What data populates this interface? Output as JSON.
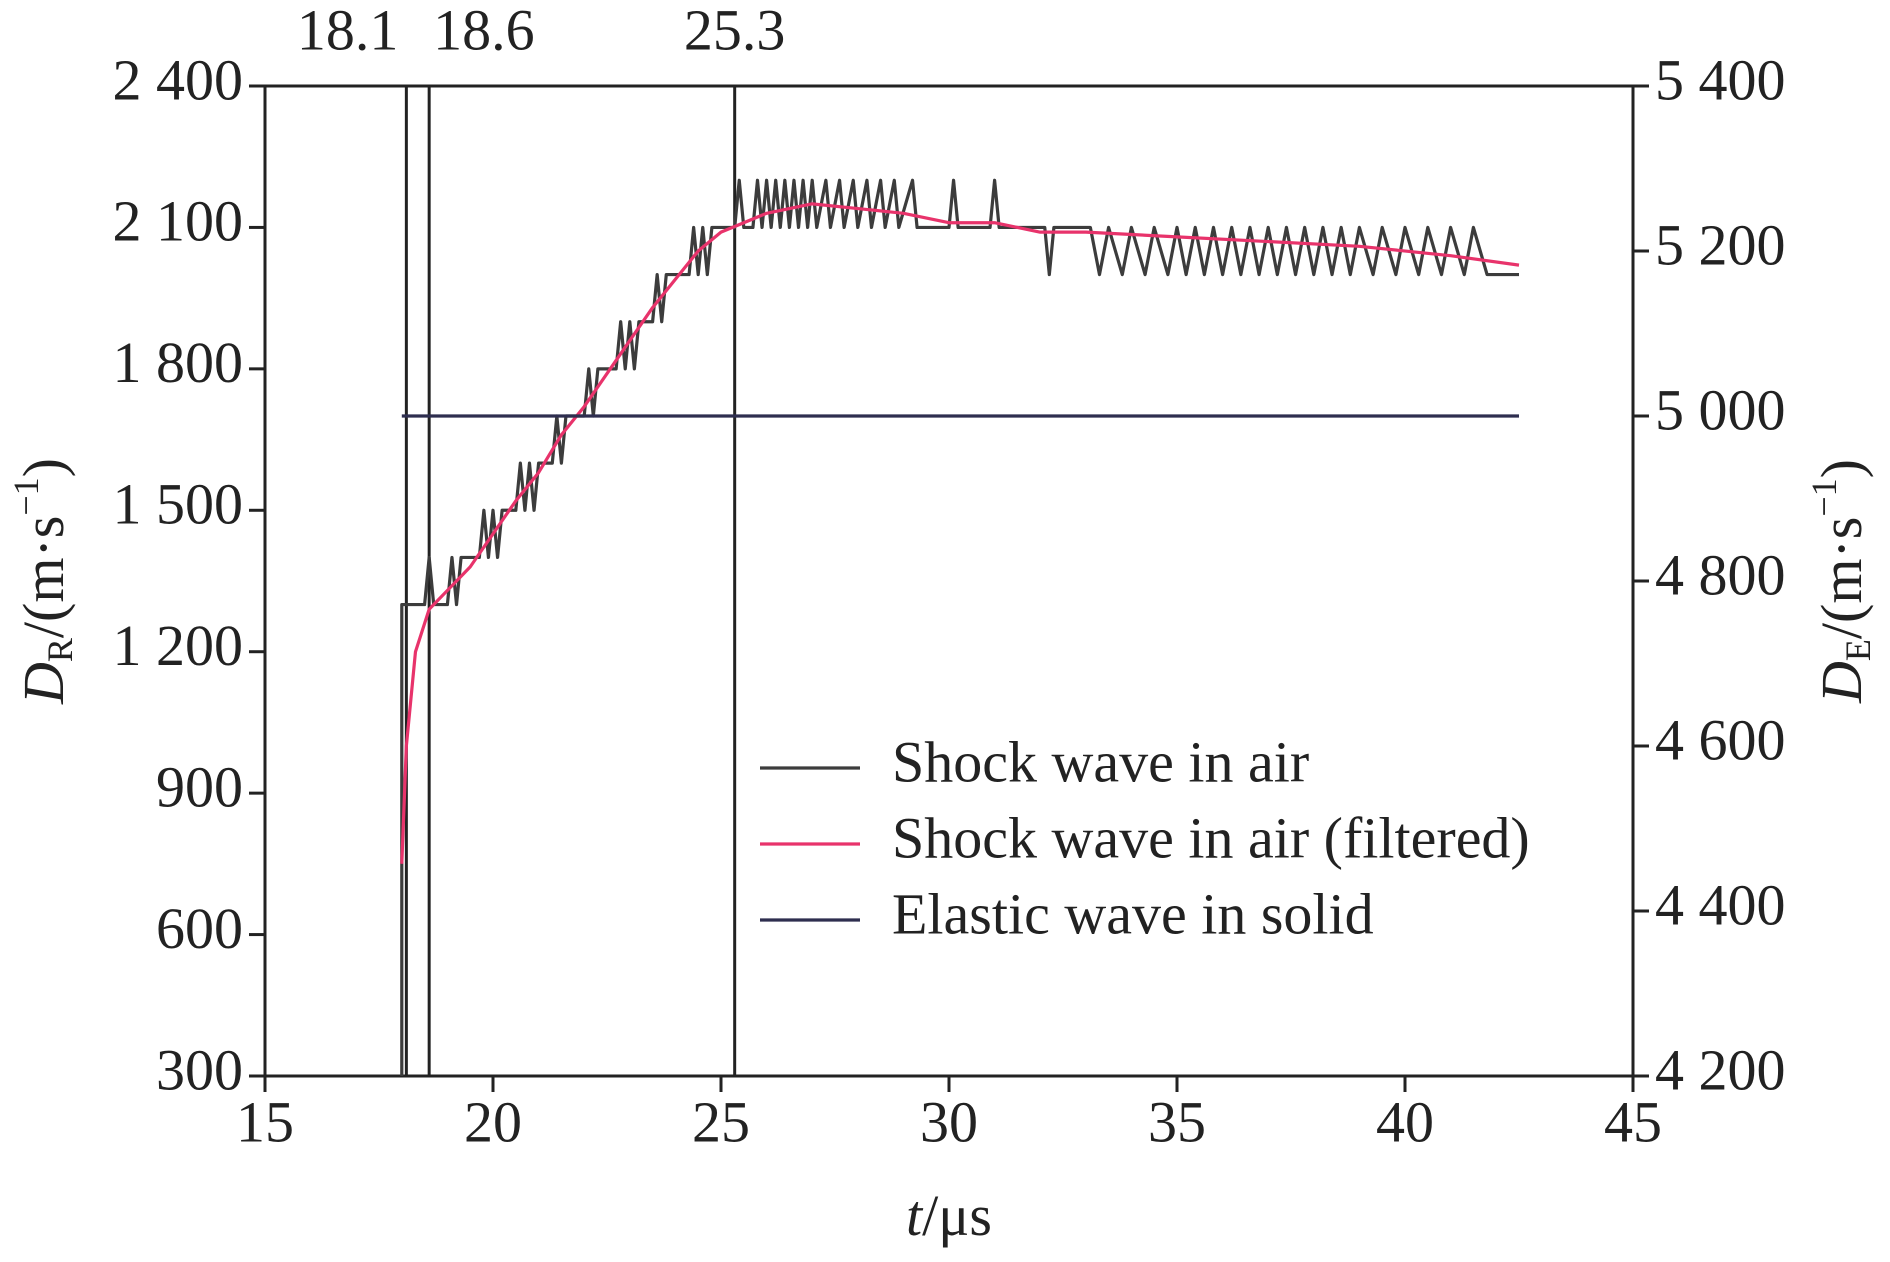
{
  "chart_data": {
    "type": "line",
    "xlabel": [
      "t",
      "/μs"
    ],
    "ylabel": [
      "D",
      "R",
      "/(m·s",
      "−1",
      ")"
    ],
    "y2label": [
      "D",
      "E",
      "/(m·s",
      "−1",
      ")"
    ],
    "xlim": [
      15,
      45
    ],
    "xticks": [
      15,
      20,
      25,
      30,
      35,
      40,
      45
    ],
    "ylim": [
      300,
      2400
    ],
    "yticks": [
      300,
      600,
      900,
      {
        "value": 1200,
        "label": "1 200"
      },
      {
        "value": 1500,
        "label": "1 500"
      },
      {
        "value": 1800,
        "label": "1 800"
      },
      {
        "value": 2100,
        "label": "2 100"
      },
      {
        "value": 2400,
        "label": "2 400"
      }
    ],
    "y2lim": [
      4200,
      5400
    ],
    "y2ticks": [
      {
        "value": 4200,
        "label": "4 200"
      },
      {
        "value": 4400,
        "label": "4 400"
      },
      {
        "value": 4600,
        "label": "4 600"
      },
      {
        "value": 4800,
        "label": "4 800"
      },
      {
        "value": 5000,
        "label": "5 000"
      },
      {
        "value": 5200,
        "label": "5 200"
      },
      {
        "value": 5400,
        "label": "5 400"
      }
    ],
    "vlines": [
      18.1,
      18.6,
      25.3
    ],
    "legend": "lower right",
    "series": [
      {
        "name": "Shock wave in air",
        "color": "#3c3c3c",
        "x": [
          18.0,
          18.0,
          18.5,
          18.6,
          18.7,
          19.0,
          19.1,
          19.2,
          19.3,
          19.7,
          19.8,
          19.9,
          20.0,
          20.1,
          20.2,
          20.5,
          20.6,
          20.7,
          20.8,
          20.9,
          21.0,
          21.3,
          21.4,
          21.5,
          21.6,
          22.0,
          22.1,
          22.2,
          22.3,
          22.7,
          22.8,
          22.9,
          23.0,
          23.1,
          23.2,
          23.5,
          23.6,
          23.7,
          23.8,
          24.3,
          24.4,
          24.5,
          24.6,
          24.7,
          24.8,
          25.3,
          25.4,
          25.5,
          25.7,
          25.8,
          25.9,
          26.0,
          26.1,
          26.2,
          26.3,
          26.4,
          26.5,
          26.6,
          26.7,
          26.8,
          26.9,
          27.0,
          27.1,
          27.3,
          27.4,
          27.6,
          27.7,
          27.9,
          28.0,
          28.2,
          28.3,
          28.5,
          28.6,
          28.8,
          28.9,
          29.2,
          29.3,
          30.0,
          30.1,
          30.2,
          30.9,
          31.0,
          31.1,
          32.1,
          32.2,
          32.3,
          33.1,
          33.3,
          33.5,
          33.8,
          34.0,
          34.3,
          34.5,
          34.8,
          35.0,
          35.2,
          35.4,
          35.6,
          35.8,
          36.0,
          36.2,
          36.4,
          36.6,
          36.8,
          37.0,
          37.2,
          37.4,
          37.6,
          37.8,
          38.0,
          38.2,
          38.4,
          38.6,
          38.8,
          39.0,
          39.3,
          39.5,
          39.8,
          40.0,
          40.3,
          40.5,
          40.8,
          41.0,
          41.3,
          41.5,
          41.8,
          42.0,
          42.5
        ],
        "values": [
          300,
          1300,
          1300,
          1400,
          1300,
          1300,
          1400,
          1300,
          1400,
          1400,
          1500,
          1400,
          1500,
          1400,
          1500,
          1500,
          1600,
          1500,
          1600,
          1500,
          1600,
          1600,
          1700,
          1600,
          1700,
          1700,
          1800,
          1700,
          1800,
          1800,
          1900,
          1800,
          1900,
          1800,
          1900,
          1900,
          2000,
          1900,
          2000,
          2000,
          2100,
          2000,
          2100,
          2000,
          2100,
          2100,
          2200,
          2100,
          2100,
          2200,
          2100,
          2200,
          2100,
          2200,
          2100,
          2200,
          2100,
          2200,
          2100,
          2200,
          2100,
          2200,
          2100,
          2200,
          2100,
          2200,
          2100,
          2200,
          2100,
          2200,
          2100,
          2200,
          2100,
          2200,
          2100,
          2200,
          2100,
          2100,
          2200,
          2100,
          2100,
          2200,
          2100,
          2100,
          2000,
          2100,
          2100,
          2000,
          2100,
          2000,
          2100,
          2000,
          2100,
          2000,
          2100,
          2000,
          2100,
          2000,
          2100,
          2000,
          2100,
          2000,
          2100,
          2000,
          2100,
          2000,
          2100,
          2000,
          2100,
          2000,
          2100,
          2000,
          2100,
          2000,
          2100,
          2000,
          2100,
          2000,
          2100,
          2000,
          2100,
          2000,
          2100,
          2000,
          2100,
          2000,
          2000,
          2000
        ]
      },
      {
        "name": "Shock wave in air (filtered)",
        "color": "#e8336b",
        "x": [
          18.0,
          18.1,
          18.3,
          18.6,
          19.0,
          19.5,
          20.0,
          20.5,
          21.0,
          21.5,
          22.0,
          22.5,
          23.0,
          23.5,
          24.0,
          24.5,
          25.0,
          25.5,
          26.0,
          27.0,
          28.0,
          29.0,
          30.0,
          31.0,
          32.0,
          33.0,
          35.0,
          37.0,
          39.0,
          41.0,
          42.5
        ],
        "values": [
          750,
          1000,
          1200,
          1290,
          1330,
          1380,
          1450,
          1520,
          1580,
          1660,
          1720,
          1790,
          1860,
          1930,
          1990,
          2050,
          2090,
          2110,
          2130,
          2150,
          2140,
          2130,
          2110,
          2110,
          2090,
          2090,
          2080,
          2070,
          2060,
          2040,
          2020
        ]
      },
      {
        "name": "Elastic wave in solid",
        "color": "#2e2e4f",
        "axis": "y2",
        "x": [
          18.0,
          42.5
        ],
        "values": [
          5000,
          5000
        ]
      }
    ]
  }
}
